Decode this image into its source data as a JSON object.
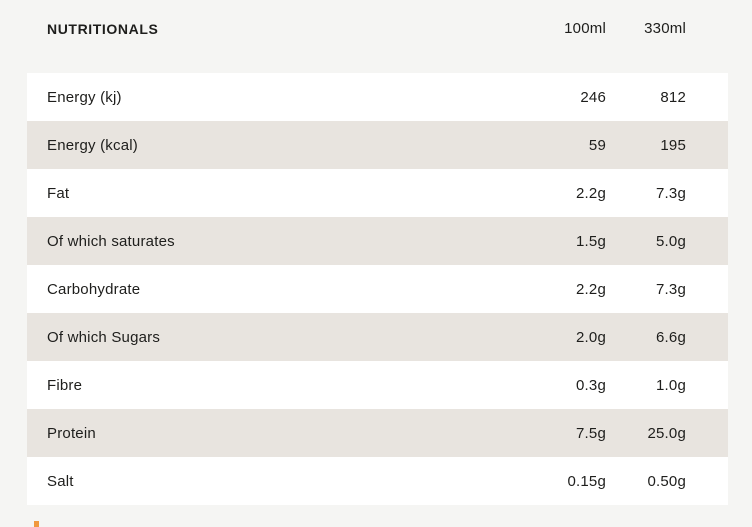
{
  "table": {
    "title": "NUTRITIONALS",
    "columns": [
      "100ml",
      "330ml"
    ],
    "rows": [
      {
        "label": "Energy (kj)",
        "per_100ml": "246",
        "per_330ml": "812"
      },
      {
        "label": "Energy (kcal)",
        "per_100ml": "59",
        "per_330ml": "195"
      },
      {
        "label": "Fat",
        "per_100ml": "2.2g",
        "per_330ml": "7.3g"
      },
      {
        "label": "Of which saturates",
        "per_100ml": "1.5g",
        "per_330ml": "5.0g"
      },
      {
        "label": "Carbohydrate",
        "per_100ml": "2.2g",
        "per_330ml": "7.3g"
      },
      {
        "label": "Of which Sugars",
        "per_100ml": "2.0g",
        "per_330ml": "6.6g"
      },
      {
        "label": "Fibre",
        "per_100ml": "0.3g",
        "per_330ml": "1.0g"
      },
      {
        "label": "Protein",
        "per_100ml": "7.5g",
        "per_330ml": "25.0g"
      },
      {
        "label": "Salt",
        "per_100ml": "0.15g",
        "per_330ml": "0.50g"
      }
    ]
  },
  "colors": {
    "page_bg": "#f5f5f3",
    "row_white": "#ffffff",
    "row_alt": "#e8e4df",
    "text": "#1e1e1c",
    "accent_orange": "#f0993f"
  }
}
